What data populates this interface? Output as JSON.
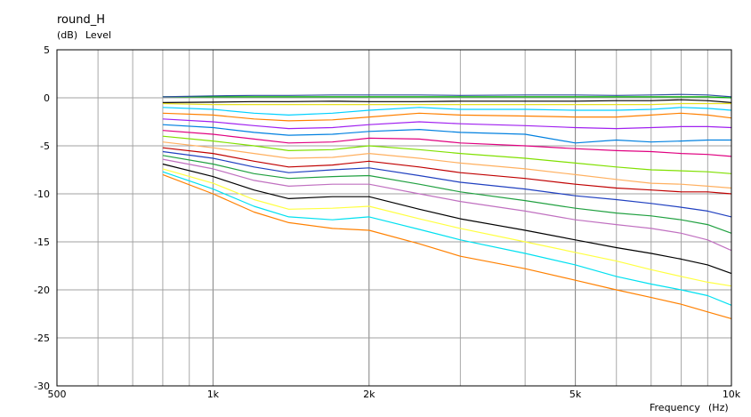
{
  "chart_data": {
    "type": "line",
    "title": "round_H",
    "y_unit_label": "(dB)",
    "ylabel": "Level",
    "xlabel": "Frequency",
    "x_unit_label": "(Hz)",
    "x_scale": "log",
    "xlim": [
      500,
      10000
    ],
    "ylim": [
      -30,
      5
    ],
    "x_ticks": [
      {
        "value": 500,
        "label": "500"
      },
      {
        "value": 1000,
        "label": "1k"
      },
      {
        "value": 2000,
        "label": "2k"
      },
      {
        "value": 5000,
        "label": "5k"
      },
      {
        "value": 10000,
        "label": "10k"
      }
    ],
    "y_ticks": [
      5,
      0,
      -5,
      -10,
      -15,
      -20,
      -25,
      -30
    ],
    "grid": true,
    "x": [
      800,
      1000,
      1200,
      1400,
      1700,
      2000,
      2500,
      3000,
      4000,
      5000,
      6000,
      7000,
      8000,
      9000,
      10000
    ],
    "series": [
      {
        "color": "#00b000",
        "values": [
          0.1,
          0.1,
          0.1,
          0.1,
          0.1,
          0.1,
          0.1,
          0.1,
          0.1,
          0.1,
          0.1,
          0.1,
          0.1,
          0.1,
          0.0
        ]
      },
      {
        "color": "#3050a0",
        "values": [
          0.1,
          0.2,
          0.25,
          0.25,
          0.3,
          0.3,
          0.3,
          0.25,
          0.3,
          0.3,
          0.25,
          0.3,
          0.35,
          0.3,
          0.1
        ]
      },
      {
        "color": "#000000",
        "values": [
          -0.5,
          -0.45,
          -0.4,
          -0.4,
          -0.35,
          -0.4,
          -0.4,
          -0.35,
          -0.35,
          -0.35,
          -0.3,
          -0.3,
          -0.2,
          -0.3,
          -0.5
        ]
      },
      {
        "color": "#e8e020",
        "values": [
          -0.6,
          -0.7,
          -0.7,
          -0.7,
          -0.7,
          -0.7,
          -0.7,
          -0.7,
          -0.7,
          -0.7,
          -0.7,
          -0.7,
          -0.6,
          -0.6,
          -0.6
        ]
      },
      {
        "color": "#00d0ff",
        "values": [
          -1.0,
          -1.2,
          -1.6,
          -1.8,
          -1.6,
          -1.3,
          -1.0,
          -1.2,
          -1.2,
          -1.3,
          -1.3,
          -1.2,
          -1.0,
          -1.1,
          -1.3
        ]
      },
      {
        "color": "#ff8000",
        "values": [
          -1.6,
          -1.8,
          -2.2,
          -2.4,
          -2.3,
          -2.0,
          -1.6,
          -1.8,
          -1.9,
          -2.0,
          -2.0,
          -1.8,
          -1.6,
          -1.8,
          -2.1
        ]
      },
      {
        "color": "#a020f0",
        "values": [
          -2.2,
          -2.5,
          -2.9,
          -3.2,
          -3.1,
          -2.8,
          -2.5,
          -2.7,
          -2.9,
          -3.1,
          -3.2,
          -3.1,
          -3.0,
          -3.0,
          -3.1
        ]
      },
      {
        "color": "#0080e0",
        "values": [
          -2.8,
          -3.1,
          -3.6,
          -3.9,
          -3.8,
          -3.5,
          -3.3,
          -3.6,
          -3.8,
          -4.7,
          -4.4,
          -4.6,
          -4.5,
          -4.4,
          -4.4
        ]
      },
      {
        "color": "#e00080",
        "values": [
          -3.4,
          -3.8,
          -4.3,
          -4.7,
          -4.6,
          -4.2,
          -4.3,
          -4.7,
          -5.0,
          -5.3,
          -5.5,
          -5.6,
          -5.8,
          -5.9,
          -6.1
        ]
      },
      {
        "color": "#80e000",
        "values": [
          -4.0,
          -4.5,
          -5.0,
          -5.5,
          -5.4,
          -5.0,
          -5.4,
          -5.8,
          -6.3,
          -6.8,
          -7.2,
          -7.5,
          -7.6,
          -7.7,
          -7.9
        ]
      },
      {
        "color": "#ffb060",
        "values": [
          -4.6,
          -5.2,
          -5.8,
          -6.3,
          -6.2,
          -5.8,
          -6.3,
          -6.8,
          -7.4,
          -8.0,
          -8.5,
          -8.9,
          -9.0,
          -9.2,
          -9.4
        ]
      },
      {
        "color": "#c00000",
        "values": [
          -5.2,
          -5.8,
          -6.6,
          -7.2,
          -7.0,
          -6.6,
          -7.2,
          -7.8,
          -8.4,
          -9.0,
          -9.4,
          -9.6,
          -9.8,
          -9.8,
          -10.0
        ]
      },
      {
        "color": "#2040c0",
        "values": [
          -5.6,
          -6.3,
          -7.2,
          -7.8,
          -7.5,
          -7.3,
          -8.1,
          -8.8,
          -9.5,
          -10.2,
          -10.6,
          -11.0,
          -11.4,
          -11.8,
          -12.4
        ]
      },
      {
        "color": "#20a040",
        "values": [
          -6.0,
          -6.9,
          -7.9,
          -8.4,
          -8.2,
          -8.1,
          -9.0,
          -9.8,
          -10.7,
          -11.5,
          -12.0,
          -12.3,
          -12.7,
          -13.2,
          -14.1
        ]
      },
      {
        "color": "#c070c0",
        "values": [
          -6.4,
          -7.4,
          -8.6,
          -9.2,
          -9.0,
          -9.0,
          -10.0,
          -10.8,
          -11.8,
          -12.7,
          -13.2,
          -13.6,
          -14.1,
          -14.8,
          -15.9
        ]
      },
      {
        "color": "#000000",
        "values": [
          -6.9,
          -8.2,
          -9.6,
          -10.5,
          -10.3,
          -10.3,
          -11.6,
          -12.6,
          -13.8,
          -14.8,
          -15.6,
          -16.2,
          -16.8,
          -17.4,
          -18.3
        ]
      },
      {
        "color": "#ffff40",
        "values": [
          -7.4,
          -8.9,
          -10.6,
          -11.6,
          -11.5,
          -11.3,
          -12.6,
          -13.6,
          -15.0,
          -16.1,
          -17.0,
          -17.9,
          -18.6,
          -19.2,
          -19.6
        ]
      },
      {
        "color": "#00e0f0",
        "values": [
          -7.7,
          -9.5,
          -11.3,
          -12.4,
          -12.7,
          -12.4,
          -13.7,
          -14.8,
          -16.2,
          -17.4,
          -18.6,
          -19.4,
          -20.0,
          -20.6,
          -21.6
        ]
      },
      {
        "color": "#ff8000",
        "values": [
          -8.0,
          -10.0,
          -11.9,
          -13.0,
          -13.6,
          -13.8,
          -15.2,
          -16.5,
          -17.8,
          -19.0,
          -20.0,
          -20.8,
          -21.5,
          -22.3,
          -23.0
        ]
      }
    ]
  }
}
